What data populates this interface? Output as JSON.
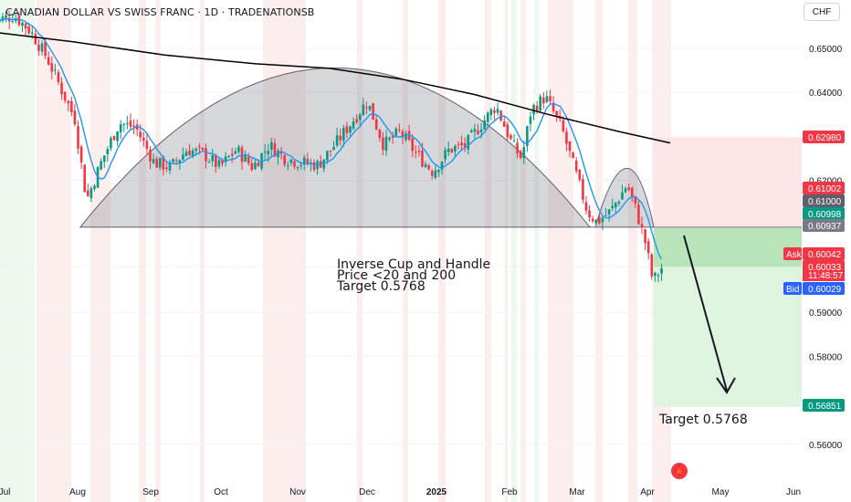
{
  "header": {
    "title": "CANADIAN DOLLAR VS SWISS FRANC · 1D · TRADENATIONSB",
    "currency": "CHF"
  },
  "annotations": {
    "pattern": "Inverse Cup and Handle",
    "condition": "Price <20 and 200",
    "target": "Target 0.5768",
    "target_bottom": "Target 0.5768"
  },
  "price_tags": {
    "stop": "0.62980",
    "high": "0.61002",
    "level": "0.61000",
    "close": "0.60998",
    "entry": "0.60937",
    "ask_label": "Ask",
    "ask": "0.60042",
    "last": "0.60033",
    "countdown": "11:48:57",
    "bid_label": "Bid",
    "bid": "0.60029",
    "take_profit": "0.56851"
  },
  "colors": {
    "up": "#089981",
    "down": "#f23645",
    "sma20": "#2196f3",
    "sma200": "#000000",
    "profit_zone": "#c8ebc9",
    "loss_zone": "#fde4e6",
    "cup": "#b0b3ba"
  },
  "chart_data": {
    "type": "candlestick",
    "timeframe": "1D",
    "y_axis": {
      "range": [
        0.555,
        0.6595
      ],
      "ticks": [
        "0.65000",
        "0.64000",
        "0.62000",
        "0.59000",
        "0.58000",
        "0.56000"
      ]
    },
    "x_axis": {
      "ticks": [
        "Jul",
        "Aug",
        "Sep",
        "Oct",
        "Nov",
        "Dec",
        "2025",
        "Feb",
        "Mar",
        "Apr",
        "May",
        "Jun"
      ]
    },
    "series": [
      {
        "name": "SMA 20",
        "type": "line",
        "color": "#2196f3"
      },
      {
        "name": "SMA 200",
        "type": "line",
        "color": "#000000"
      }
    ],
    "price_path": [
      [
        "2024-06-26",
        0.656
      ],
      [
        "2024-07-05",
        0.6575
      ],
      [
        "2024-07-12",
        0.654
      ],
      [
        "2024-07-19",
        0.648
      ],
      [
        "2024-07-25",
        0.641
      ],
      [
        "2024-07-31",
        0.634
      ],
      [
        "2024-08-05",
        0.6155
      ],
      [
        "2024-08-12",
        0.625
      ],
      [
        "2024-08-19",
        0.633
      ],
      [
        "2024-08-26",
        0.632
      ],
      [
        "2024-09-03",
        0.624
      ],
      [
        "2024-09-10",
        0.623
      ],
      [
        "2024-09-17",
        0.627
      ],
      [
        "2024-09-24",
        0.626
      ],
      [
        "2024-10-01",
        0.623
      ],
      [
        "2024-10-08",
        0.627
      ],
      [
        "2024-10-15",
        0.623
      ],
      [
        "2024-10-22",
        0.628
      ],
      [
        "2024-10-29",
        0.625
      ],
      [
        "2024-11-05",
        0.624
      ],
      [
        "2024-11-12",
        0.6235
      ],
      [
        "2024-11-19",
        0.628
      ],
      [
        "2024-11-26",
        0.633
      ],
      [
        "2024-12-03",
        0.638
      ],
      [
        "2024-12-10",
        0.628
      ],
      [
        "2024-12-17",
        0.631
      ],
      [
        "2024-12-24",
        0.626
      ],
      [
        "2024-12-31",
        0.622
      ],
      [
        "2025-01-07",
        0.627
      ],
      [
        "2025-01-14",
        0.628
      ],
      [
        "2025-01-21",
        0.633
      ],
      [
        "2025-01-27",
        0.637
      ],
      [
        "2025-02-03",
        0.628
      ],
      [
        "2025-02-07",
        0.625
      ],
      [
        "2025-02-11",
        0.636
      ],
      [
        "2025-02-17",
        0.639
      ],
      [
        "2025-02-24",
        0.632
      ],
      [
        "2025-03-03",
        0.62
      ],
      [
        "2025-03-07",
        0.613
      ],
      [
        "2025-03-11",
        0.6105
      ],
      [
        "2025-03-17",
        0.613
      ],
      [
        "2025-03-24",
        0.619
      ],
      [
        "2025-03-28",
        0.613
      ],
      [
        "2025-04-01",
        0.6055
      ],
      [
        "2025-04-04",
        0.597
      ],
      [
        "2025-04-08",
        0.6003
      ]
    ],
    "pattern": {
      "name": "Inverse Cup and Handle",
      "neckline": 0.60937,
      "entry": 0.60937,
      "stop_loss": 0.6298,
      "take_profit": 0.56851,
      "target": 0.5768
    }
  }
}
